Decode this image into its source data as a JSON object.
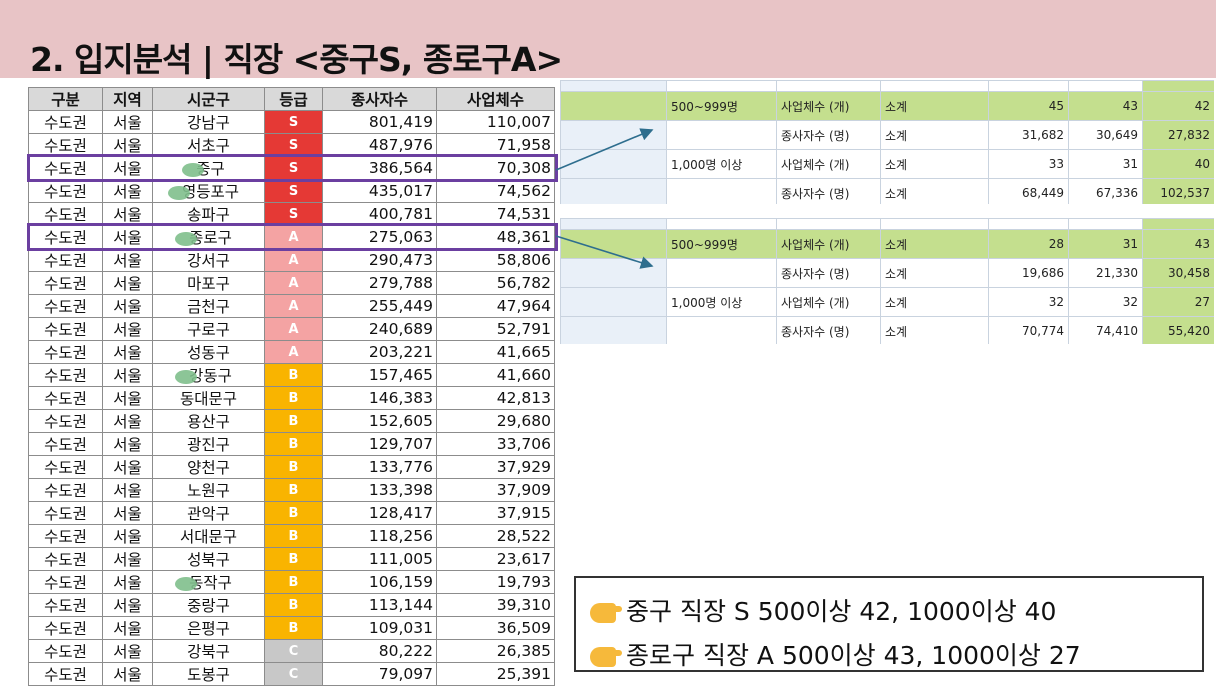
{
  "title": "2. 입지분석 | 직장 <중구S, 종로구A>",
  "rank_table": {
    "headers": [
      "구분",
      "지역",
      "시군구",
      "등급",
      "종사자수",
      "사업체수"
    ],
    "rows": [
      [
        "수도권",
        "서울",
        "강남구",
        "S",
        "801,419",
        "110,007"
      ],
      [
        "수도권",
        "서울",
        "서초구",
        "S",
        "487,976",
        "71,958"
      ],
      [
        "수도권",
        "서울",
        "중구",
        "S",
        "386,564",
        "70,308"
      ],
      [
        "수도권",
        "서울",
        "영등포구",
        "S",
        "435,017",
        "74,562"
      ],
      [
        "수도권",
        "서울",
        "송파구",
        "S",
        "400,781",
        "74,531"
      ],
      [
        "수도권",
        "서울",
        "종로구",
        "A",
        "275,063",
        "48,361"
      ],
      [
        "수도권",
        "서울",
        "강서구",
        "A",
        "290,473",
        "58,806"
      ],
      [
        "수도권",
        "서울",
        "마포구",
        "A",
        "279,788",
        "56,782"
      ],
      [
        "수도권",
        "서울",
        "금천구",
        "A",
        "255,449",
        "47,964"
      ],
      [
        "수도권",
        "서울",
        "구로구",
        "A",
        "240,689",
        "52,791"
      ],
      [
        "수도권",
        "서울",
        "성동구",
        "A",
        "203,221",
        "41,665"
      ],
      [
        "수도권",
        "서울",
        "강동구",
        "B",
        "157,465",
        "41,660"
      ],
      [
        "수도권",
        "서울",
        "동대문구",
        "B",
        "146,383",
        "42,813"
      ],
      [
        "수도권",
        "서울",
        "용산구",
        "B",
        "152,605",
        "29,680"
      ],
      [
        "수도권",
        "서울",
        "광진구",
        "B",
        "129,707",
        "33,706"
      ],
      [
        "수도권",
        "서울",
        "양천구",
        "B",
        "133,776",
        "37,929"
      ],
      [
        "수도권",
        "서울",
        "노원구",
        "B",
        "133,398",
        "37,909"
      ],
      [
        "수도권",
        "서울",
        "관악구",
        "B",
        "128,417",
        "37,915"
      ],
      [
        "수도권",
        "서울",
        "서대문구",
        "B",
        "118,256",
        "28,522"
      ],
      [
        "수도권",
        "서울",
        "성북구",
        "B",
        "111,005",
        "23,617"
      ],
      [
        "수도권",
        "서울",
        "동작구",
        "B",
        "106,159",
        "19,793"
      ],
      [
        "수도권",
        "서울",
        "중랑구",
        "B",
        "113,144",
        "39,310"
      ],
      [
        "수도권",
        "서울",
        "은평구",
        "B",
        "109,031",
        "36,509"
      ],
      [
        "수도권",
        "서울",
        "강북구",
        "C",
        "80,222",
        "26,385"
      ],
      [
        "수도권",
        "서울",
        "도봉구",
        "C",
        "79,097",
        "25,391"
      ]
    ],
    "marked_rows": [
      2,
      3,
      5,
      11,
      20
    ],
    "highlighted_rows": [
      2,
      5
    ]
  },
  "junggu_table": {
    "rows": [
      {
        "band": "500~999명",
        "item": "사업체수 (개)",
        "type": "소계",
        "v1": "45",
        "v2": "43",
        "v3": "42",
        "green": true
      },
      {
        "band": "",
        "item": "종사자수 (명)",
        "type": "소계",
        "v1": "31,682",
        "v2": "30,649",
        "v3": "27,832",
        "green": false
      },
      {
        "band": "1,000명 이상",
        "item": "사업체수 (개)",
        "type": "소계",
        "v1": "33",
        "v2": "31",
        "v3": "40",
        "green": false
      },
      {
        "band": "",
        "item": "종사자수 (명)",
        "type": "소계",
        "v1": "68,449",
        "v2": "67,336",
        "v3": "102,537",
        "green": false
      }
    ]
  },
  "jongno_table": {
    "rows": [
      {
        "band": "500~999명",
        "item": "사업체수 (개)",
        "type": "소계",
        "v1": "28",
        "v2": "31",
        "v3": "43",
        "green": true
      },
      {
        "band": "",
        "item": "종사자수 (명)",
        "type": "소계",
        "v1": "19,686",
        "v2": "21,330",
        "v3": "30,458",
        "green": false
      },
      {
        "band": "1,000명 이상",
        "item": "사업체수 (개)",
        "type": "소계",
        "v1": "32",
        "v2": "32",
        "v3": "27",
        "green": false
      },
      {
        "band": "",
        "item": "종사자수 (명)",
        "type": "소계",
        "v1": "70,774",
        "v2": "74,410",
        "v3": "55,420",
        "green": false
      }
    ]
  },
  "notes": [
    "중구 직장 S 500이상 42, 1000이상 40",
    "종로구 직장 A  500이상 43, 1000이상 27"
  ],
  "colors": {
    "header_bg": "#e8c4c6",
    "grade_S": "#e53935",
    "grade_A": "#f4a3a3",
    "grade_B": "#f9b400",
    "grade_C": "#c8c8c8",
    "highlight": "#6b3fa0",
    "green_row": "#c4df8e"
  }
}
